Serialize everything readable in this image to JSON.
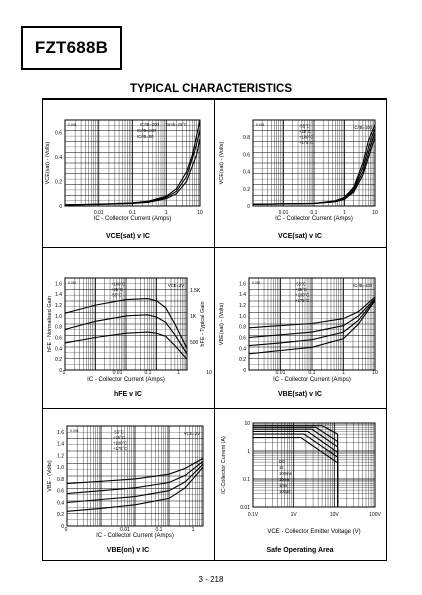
{
  "part_number": "FZT688B",
  "section_title": "TYPICAL CHARACTERISTICS",
  "page_number": "3 - 218",
  "chart_data": [
    {
      "id": "vcesat_ic_25",
      "type": "line",
      "caption": "VCE(sat) v IC",
      "xlabel": "IC - Collector Current (Amps)",
      "ylabel": "VCE(sat) - (Volts)",
      "x_scale": "log",
      "xlim": [
        0.001,
        10
      ],
      "ylim": [
        0,
        0.7
      ],
      "x_ticks": [
        "0.01",
        "0.1",
        "1",
        "10"
      ],
      "y_ticks": [
        "0",
        "0.2",
        "0.4",
        "0.6"
      ],
      "corner_label": "0.001",
      "annotations": [
        "IC/IB=200",
        "IC/IB=100",
        "IC/IB=50",
        "Tamb=25°C"
      ],
      "series": [
        {
          "name": "IC/IB=200",
          "x": [
            0.001,
            0.01,
            0.1,
            0.3,
            1,
            2,
            4,
            6,
            10
          ],
          "y": [
            0.01,
            0.015,
            0.025,
            0.04,
            0.08,
            0.14,
            0.28,
            0.42,
            0.7
          ]
        },
        {
          "name": "IC/IB=100",
          "x": [
            0.001,
            0.01,
            0.1,
            0.3,
            1,
            2,
            4,
            7,
            10
          ],
          "y": [
            0.01,
            0.014,
            0.022,
            0.035,
            0.07,
            0.12,
            0.24,
            0.45,
            0.62
          ]
        },
        {
          "name": "IC/IB=50",
          "x": [
            0.001,
            0.01,
            0.1,
            0.3,
            1,
            2,
            4,
            8,
            10
          ],
          "y": [
            0.008,
            0.012,
            0.02,
            0.03,
            0.06,
            0.1,
            0.2,
            0.42,
            0.55
          ]
        }
      ]
    },
    {
      "id": "vcesat_ic_temp",
      "type": "line",
      "caption": "VCE(sat) v IC",
      "xlabel": "IC - Collector Current (Amps)",
      "ylabel": "VCE(sat) - (Volts)",
      "x_scale": "log",
      "xlim": [
        0.001,
        10
      ],
      "ylim": [
        0,
        1.0
      ],
      "x_ticks": [
        "0.01",
        "0.1",
        "1",
        "10"
      ],
      "y_ticks": [
        "0",
        "0.2",
        "0.4",
        "0.6",
        "0.8"
      ],
      "corner_label": "0.001",
      "annotations": [
        "IC/IB=100",
        "-55°C",
        "+25°C",
        "+100°C",
        "+175°C"
      ],
      "series": [
        {
          "name": "-55°C",
          "x": [
            0.001,
            0.1,
            0.5,
            1,
            2,
            4,
            6,
            10
          ],
          "y": [
            0.02,
            0.03,
            0.06,
            0.1,
            0.22,
            0.5,
            0.75,
            0.95
          ]
        },
        {
          "name": "+25°C",
          "x": [
            0.001,
            0.1,
            0.5,
            1,
            2,
            4,
            7,
            10
          ],
          "y": [
            0.02,
            0.03,
            0.05,
            0.09,
            0.2,
            0.45,
            0.75,
            0.9
          ]
        },
        {
          "name": "+100°C",
          "x": [
            0.001,
            0.1,
            0.5,
            1,
            2,
            4,
            8,
            10
          ],
          "y": [
            0.02,
            0.03,
            0.05,
            0.08,
            0.18,
            0.4,
            0.75,
            0.85
          ]
        },
        {
          "name": "+175°C",
          "x": [
            0.001,
            0.1,
            0.5,
            1,
            2,
            4,
            9,
            10
          ],
          "y": [
            0.02,
            0.03,
            0.05,
            0.08,
            0.16,
            0.36,
            0.75,
            0.8
          ]
        }
      ]
    },
    {
      "id": "hfe_ic",
      "type": "line",
      "caption": "hFE v IC",
      "xlabel": "IC - Collector Current (Amps)",
      "ylabel": "hFE - Normalised Gain",
      "ylabel_right": "hFE - Typical Gain",
      "x_scale": "log",
      "xlim": [
        0.001,
        10
      ],
      "ylim": [
        0,
        1.7
      ],
      "x_ticks": [
        "0",
        "0.01",
        "0.1",
        "1",
        "10"
      ],
      "y_ticks": [
        "0",
        "0.2",
        "0.4",
        "0.6",
        "0.8",
        "1.0",
        "1.2",
        "1.4",
        "1.6"
      ],
      "y_right_ticks": [
        "1.5K",
        "1K",
        "500"
      ],
      "corner_label": "0.001",
      "annotations": [
        "VCE=2V",
        "+100°C",
        "+25°C",
        "-55°C"
      ],
      "series": [
        {
          "name": "+100°C",
          "x": [
            0.001,
            0.01,
            0.1,
            0.5,
            1,
            2,
            4,
            10
          ],
          "y": [
            1.05,
            1.2,
            1.3,
            1.32,
            1.28,
            1.15,
            0.85,
            0.4
          ]
        },
        {
          "name": "+25°C",
          "x": [
            0.001,
            0.01,
            0.1,
            0.5,
            1,
            2,
            4,
            10
          ],
          "y": [
            0.75,
            0.9,
            1.0,
            1.02,
            0.98,
            0.88,
            0.65,
            0.3
          ]
        },
        {
          "name": "-55°C",
          "x": [
            0.001,
            0.01,
            0.1,
            0.5,
            1,
            2,
            4,
            10
          ],
          "y": [
            0.5,
            0.6,
            0.68,
            0.7,
            0.68,
            0.62,
            0.45,
            0.2
          ]
        }
      ]
    },
    {
      "id": "vbesat_ic",
      "type": "line",
      "caption": "VBE(sat) v IC",
      "xlabel": "IC - Collector Current (Amps)",
      "ylabel": "VBE(sat) - (Volts)",
      "x_scale": "log",
      "xlim": [
        0.001,
        10
      ],
      "ylim": [
        0,
        1.7
      ],
      "x_ticks": [
        "0.01",
        "0.1",
        "1",
        "10"
      ],
      "y_ticks": [
        "0",
        "0.2",
        "0.4",
        "0.6",
        "0.8",
        "1.0",
        "1.2",
        "1.4",
        "1.6"
      ],
      "corner_label": "0.001",
      "annotations": [
        "IC/IB=100",
        "-55°C",
        "+25°C",
        "+100°C",
        "+175°C"
      ],
      "series": [
        {
          "name": "-55°C",
          "x": [
            0.001,
            0.01,
            0.1,
            1,
            3,
            10
          ],
          "y": [
            0.78,
            0.82,
            0.86,
            0.95,
            1.08,
            1.35
          ]
        },
        {
          "name": "+25°C",
          "x": [
            0.001,
            0.01,
            0.1,
            1,
            3,
            10
          ],
          "y": [
            0.6,
            0.65,
            0.7,
            0.82,
            1.0,
            1.32
          ]
        },
        {
          "name": "+100°C",
          "x": [
            0.001,
            0.01,
            0.1,
            1,
            3,
            10
          ],
          "y": [
            0.45,
            0.5,
            0.56,
            0.7,
            0.92,
            1.3
          ]
        },
        {
          "name": "+175°C",
          "x": [
            0.001,
            0.01,
            0.1,
            1,
            3,
            10
          ],
          "y": [
            0.3,
            0.36,
            0.42,
            0.58,
            0.85,
            1.28
          ]
        }
      ]
    },
    {
      "id": "vbeon_ic",
      "type": "line",
      "caption": "VBE(on) v IC",
      "xlabel": "IC - Collector Current (Amps)",
      "ylabel": "VBE - (Volts)",
      "x_scale": "log",
      "xlim": [
        0.001,
        10
      ],
      "ylim": [
        0,
        1.7
      ],
      "x_ticks": [
        "0",
        "0.01",
        "0.1",
        "1",
        "10"
      ],
      "y_ticks": [
        "0",
        "0.2",
        "0.4",
        "0.6",
        "0.8",
        "1.0",
        "1.2",
        "1.4",
        "1.6"
      ],
      "corner_label": "0.001",
      "annotations": [
        "VCE=2V",
        "-55°C",
        "+25°C",
        "+100°C",
        "+175°C"
      ],
      "series": [
        {
          "name": "-55°C",
          "x": [
            0.001,
            0.01,
            0.1,
            1,
            3,
            10
          ],
          "y": [
            0.72,
            0.76,
            0.8,
            0.88,
            0.98,
            1.15
          ]
        },
        {
          "name": "+25°C",
          "x": [
            0.001,
            0.01,
            0.1,
            1,
            3,
            10
          ],
          "y": [
            0.55,
            0.6,
            0.65,
            0.74,
            0.86,
            1.1
          ]
        },
        {
          "name": "+100°C",
          "x": [
            0.001,
            0.01,
            0.1,
            1,
            3,
            10
          ],
          "y": [
            0.4,
            0.45,
            0.5,
            0.6,
            0.75,
            1.05
          ]
        },
        {
          "name": "+175°C",
          "x": [
            0.001,
            0.01,
            0.1,
            1,
            3,
            10
          ],
          "y": [
            0.25,
            0.3,
            0.36,
            0.47,
            0.65,
            1.0
          ]
        }
      ]
    },
    {
      "id": "soa",
      "type": "line",
      "caption": "Safe Operating Area",
      "xlabel": "VCE - Collector Emitter Voltage (V)",
      "ylabel": "IC-Collector Current (A)",
      "x_scale": "log",
      "y_scale": "log",
      "xlim": [
        0.1,
        100
      ],
      "ylim": [
        0.01,
        10
      ],
      "x_ticks": [
        "0.1V",
        "1V",
        "10V",
        "100V"
      ],
      "y_ticks": [
        "0.01",
        "0.1",
        "1",
        "10"
      ],
      "annotations": [
        "DC",
        "1s",
        "100ms",
        "10ms",
        "1ms",
        "100µs"
      ],
      "series": [
        {
          "name": "DC",
          "x": [
            0.1,
            1.5,
            12,
            12
          ],
          "y": [
            3,
            3,
            0.38,
            0.01
          ]
        },
        {
          "name": "1s",
          "x": [
            0.1,
            1.8,
            12,
            12
          ],
          "y": [
            4,
            4,
            0.6,
            0.01
          ]
        },
        {
          "name": "100ms",
          "x": [
            0.1,
            2.2,
            12,
            12
          ],
          "y": [
            5,
            5,
            0.9,
            0.01
          ]
        },
        {
          "name": "10ms",
          "x": [
            0.1,
            2.8,
            12,
            12
          ],
          "y": [
            6,
            6,
            1.4,
            0.01
          ]
        },
        {
          "name": "1ms",
          "x": [
            0.1,
            3.5,
            12,
            12
          ],
          "y": [
            7,
            7,
            2.2,
            0.01
          ]
        },
        {
          "name": "100µs",
          "x": [
            0.1,
            5,
            12,
            12
          ],
          "y": [
            8,
            8,
            4,
            0.01
          ]
        }
      ]
    }
  ]
}
